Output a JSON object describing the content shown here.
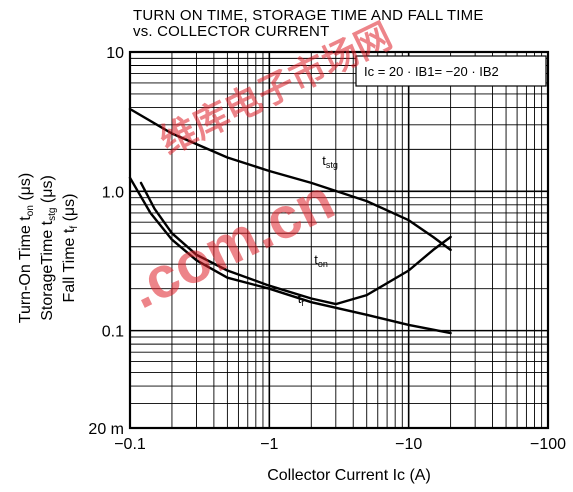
{
  "chart_data": {
    "type": "line",
    "title_lines": [
      "TURN ON TIME, STORAGE TIME AND FALL TIME",
      "vs. COLLECTOR CURRENT"
    ],
    "xlabel": {
      "main": "Collector Current",
      "symbol": "Ic",
      "unit": "(A)"
    },
    "ylabel_lines": [
      {
        "text": "Turn-On Time",
        "symbol": "ton",
        "unit": "(μs)"
      },
      {
        "text": "StorageTime",
        "symbol": "tstg",
        "unit": "(μs)"
      },
      {
        "text": "Fall Time",
        "symbol": "tf",
        "unit": "(μs)"
      }
    ],
    "x_scale": "log",
    "y_scale": "log",
    "xlim": [
      0.1,
      100
    ],
    "ylim": [
      0.02,
      10
    ],
    "x_ticks": [
      {
        "value": 0.1,
        "label": "−0.1"
      },
      {
        "value": 1,
        "label": "−1"
      },
      {
        "value": 10,
        "label": "−10"
      },
      {
        "value": 100,
        "label": "−100"
      }
    ],
    "y_ticks": [
      {
        "value": 10,
        "label": "10"
      },
      {
        "value": 1,
        "label": "1.0"
      },
      {
        "value": 0.1,
        "label": "0.1"
      },
      {
        "value": 0.02,
        "label": "20 m"
      }
    ],
    "grid": true,
    "condition_box": {
      "text": "Ic = 20 · IB1= −20 · IB2",
      "placement": "top-right"
    },
    "series": [
      {
        "name": "tstg",
        "points": [
          [
            0.1,
            3.9
          ],
          [
            0.2,
            2.6
          ],
          [
            0.5,
            1.75
          ],
          [
            1,
            1.4
          ],
          [
            2,
            1.15
          ],
          [
            5,
            0.85
          ],
          [
            10,
            0.62
          ],
          [
            15,
            0.47
          ],
          [
            20,
            0.38
          ]
        ]
      },
      {
        "name": "ton",
        "points": [
          [
            0.12,
            1.15
          ],
          [
            0.15,
            0.75
          ],
          [
            0.2,
            0.5
          ],
          [
            0.3,
            0.35
          ],
          [
            0.5,
            0.27
          ],
          [
            1,
            0.21
          ],
          [
            2,
            0.17
          ],
          [
            3,
            0.155
          ],
          [
            5,
            0.18
          ],
          [
            10,
            0.27
          ],
          [
            15,
            0.38
          ],
          [
            20,
            0.47
          ]
        ]
      },
      {
        "name": "tf",
        "points": [
          [
            0.1,
            1.25
          ],
          [
            0.14,
            0.7
          ],
          [
            0.2,
            0.45
          ],
          [
            0.3,
            0.32
          ],
          [
            0.5,
            0.24
          ],
          [
            1,
            0.2
          ],
          [
            2,
            0.16
          ],
          [
            5,
            0.13
          ],
          [
            10,
            0.11
          ],
          [
            20,
            0.096
          ]
        ]
      }
    ],
    "series_label_text": {
      "tstg": "tstg",
      "ton": "ton",
      "tf": "tf"
    }
  },
  "watermark": {
    "text": "维库电子市场网",
    "domain": ".com.cn"
  }
}
